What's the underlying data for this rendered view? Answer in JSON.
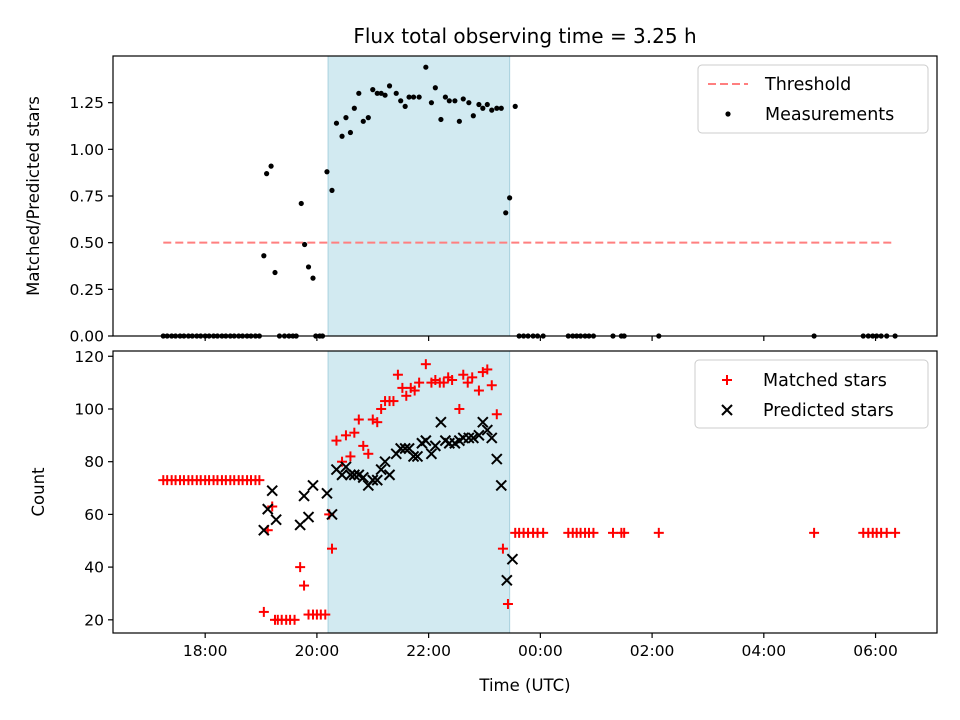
{
  "title": "Flux total observing time = 3.25 h",
  "shaded_region": {
    "start_hour": 20.2,
    "end_hour": 23.45,
    "color": "#add8e6"
  },
  "chart_data": [
    {
      "type": "scatter",
      "name": "ratio-panel",
      "ylabel": "Matched/Predicted stars",
      "ylim": [
        0,
        1.5
      ],
      "yticks": [
        0,
        0.25,
        0.5,
        0.75,
        1.0,
        1.25
      ],
      "ytick_labels": [
        "0.00",
        "0.25",
        "0.50",
        "0.75",
        "1.00",
        "1.25"
      ],
      "legend_position": "top-right",
      "threshold": {
        "name": "Threshold",
        "value": 0.5,
        "x": [
          17.25,
          30.35
        ],
        "color": "#ff7f7f"
      },
      "series": [
        {
          "name": "Measurements",
          "color": "#000000",
          "points": [
            [
              17.25,
              0
            ],
            [
              17.32,
              0
            ],
            [
              17.4,
              0
            ],
            [
              17.47,
              0
            ],
            [
              17.55,
              0
            ],
            [
              17.62,
              0
            ],
            [
              17.7,
              0
            ],
            [
              17.77,
              0
            ],
            [
              17.85,
              0
            ],
            [
              17.92,
              0
            ],
            [
              18.0,
              0
            ],
            [
              18.07,
              0
            ],
            [
              18.15,
              0
            ],
            [
              18.22,
              0
            ],
            [
              18.3,
              0
            ],
            [
              18.37,
              0
            ],
            [
              18.45,
              0
            ],
            [
              18.52,
              0
            ],
            [
              18.6,
              0
            ],
            [
              18.67,
              0
            ],
            [
              18.75,
              0
            ],
            [
              18.82,
              0
            ],
            [
              18.9,
              0
            ],
            [
              18.97,
              0
            ],
            [
              19.05,
              0.43
            ],
            [
              19.1,
              0.87
            ],
            [
              19.18,
              0.91
            ],
            [
              19.25,
              0.34
            ],
            [
              19.33,
              0
            ],
            [
              19.42,
              0
            ],
            [
              19.5,
              0
            ],
            [
              19.57,
              0
            ],
            [
              19.63,
              0
            ],
            [
              19.72,
              0.71
            ],
            [
              19.78,
              0.49
            ],
            [
              19.85,
              0.37
            ],
            [
              19.93,
              0.31
            ],
            [
              19.98,
              0
            ],
            [
              20.05,
              0
            ],
            [
              20.1,
              0
            ],
            [
              20.18,
              0.88
            ],
            [
              20.27,
              0.78
            ],
            [
              20.35,
              1.14
            ],
            [
              20.45,
              1.07
            ],
            [
              20.52,
              1.17
            ],
            [
              20.6,
              1.09
            ],
            [
              20.67,
              1.22
            ],
            [
              20.75,
              1.3
            ],
            [
              20.83,
              1.15
            ],
            [
              20.92,
              1.17
            ],
            [
              21.0,
              1.32
            ],
            [
              21.08,
              1.3
            ],
            [
              21.15,
              1.3
            ],
            [
              21.22,
              1.29
            ],
            [
              21.3,
              1.34
            ],
            [
              21.42,
              1.3
            ],
            [
              21.5,
              1.26
            ],
            [
              21.58,
              1.23
            ],
            [
              21.65,
              1.28
            ],
            [
              21.73,
              1.28
            ],
            [
              21.83,
              1.28
            ],
            [
              21.95,
              1.44
            ],
            [
              22.05,
              1.25
            ],
            [
              22.12,
              1.33
            ],
            [
              22.22,
              1.16
            ],
            [
              22.3,
              1.28
            ],
            [
              22.37,
              1.26
            ],
            [
              22.47,
              1.26
            ],
            [
              22.55,
              1.15
            ],
            [
              22.62,
              1.27
            ],
            [
              22.72,
              1.25
            ],
            [
              22.8,
              1.18
            ],
            [
              22.9,
              1.24
            ],
            [
              22.97,
              1.22
            ],
            [
              23.05,
              1.24
            ],
            [
              23.13,
              1.21
            ],
            [
              23.22,
              1.22
            ],
            [
              23.3,
              1.22
            ],
            [
              23.38,
              0.66
            ],
            [
              23.45,
              0.74
            ],
            [
              23.55,
              1.23
            ],
            [
              23.62,
              0
            ],
            [
              23.7,
              0
            ],
            [
              23.78,
              0
            ],
            [
              23.87,
              0
            ],
            [
              23.95,
              0
            ],
            [
              24.05,
              0
            ],
            [
              24.5,
              0
            ],
            [
              24.58,
              0
            ],
            [
              24.65,
              0
            ],
            [
              24.72,
              0
            ],
            [
              24.8,
              0
            ],
            [
              24.87,
              0
            ],
            [
              24.95,
              0
            ],
            [
              25.3,
              0
            ],
            [
              25.45,
              0
            ],
            [
              25.5,
              0
            ],
            [
              26.12,
              0
            ],
            [
              28.9,
              0
            ],
            [
              29.78,
              0
            ],
            [
              29.87,
              0
            ],
            [
              29.95,
              0
            ],
            [
              30.02,
              0
            ],
            [
              30.1,
              0
            ],
            [
              30.2,
              0
            ],
            [
              30.35,
              0
            ]
          ]
        }
      ]
    },
    {
      "type": "scatter",
      "name": "count-panel",
      "ylabel": "Count",
      "xlabel": "Time (UTC)",
      "xlim": [
        16.35,
        31.1
      ],
      "xticks": [
        18,
        20,
        22,
        24,
        26,
        28,
        30
      ],
      "xtick_labels": [
        "18:00",
        "20:00",
        "22:00",
        "00:00",
        "02:00",
        "04:00",
        "06:00"
      ],
      "ylim": [
        15,
        122
      ],
      "yticks": [
        20,
        40,
        60,
        80,
        100,
        120
      ],
      "ytick_labels": [
        "20",
        "40",
        "60",
        "80",
        "100",
        "120"
      ],
      "legend_position": "top-right",
      "series": [
        {
          "name": "Matched stars",
          "color": "#ff0000",
          "marker": "plus",
          "points": [
            [
              17.25,
              73
            ],
            [
              17.32,
              73
            ],
            [
              17.4,
              73
            ],
            [
              17.47,
              73
            ],
            [
              17.55,
              73
            ],
            [
              17.62,
              73
            ],
            [
              17.7,
              73
            ],
            [
              17.77,
              73
            ],
            [
              17.85,
              73
            ],
            [
              17.92,
              73
            ],
            [
              18.0,
              73
            ],
            [
              18.07,
              73
            ],
            [
              18.15,
              73
            ],
            [
              18.22,
              73
            ],
            [
              18.3,
              73
            ],
            [
              18.37,
              73
            ],
            [
              18.45,
              73
            ],
            [
              18.52,
              73
            ],
            [
              18.6,
              73
            ],
            [
              18.67,
              73
            ],
            [
              18.75,
              73
            ],
            [
              18.82,
              73
            ],
            [
              18.9,
              73
            ],
            [
              18.97,
              73
            ],
            [
              19.05,
              23
            ],
            [
              19.12,
              54
            ],
            [
              19.2,
              63
            ],
            [
              19.25,
              20
            ],
            [
              19.3,
              20
            ],
            [
              19.37,
              20
            ],
            [
              19.45,
              20
            ],
            [
              19.52,
              20
            ],
            [
              19.6,
              20
            ],
            [
              19.7,
              40
            ],
            [
              19.77,
              33
            ],
            [
              19.85,
              22
            ],
            [
              19.93,
              22
            ],
            [
              20.0,
              22
            ],
            [
              20.07,
              22
            ],
            [
              20.15,
              22
            ],
            [
              20.22,
              60
            ],
            [
              20.27,
              47
            ],
            [
              20.35,
              88
            ],
            [
              20.45,
              80
            ],
            [
              20.52,
              90
            ],
            [
              20.6,
              82
            ],
            [
              20.67,
              91
            ],
            [
              20.75,
              96
            ],
            [
              20.83,
              86
            ],
            [
              20.92,
              83
            ],
            [
              21.0,
              96
            ],
            [
              21.08,
              95
            ],
            [
              21.15,
              100
            ],
            [
              21.22,
              103
            ],
            [
              21.3,
              103
            ],
            [
              21.37,
              103
            ],
            [
              21.45,
              113
            ],
            [
              21.53,
              108
            ],
            [
              21.6,
              105
            ],
            [
              21.68,
              108
            ],
            [
              21.75,
              107
            ],
            [
              21.83,
              110
            ],
            [
              21.95,
              117
            ],
            [
              22.05,
              110
            ],
            [
              22.12,
              111
            ],
            [
              22.2,
              110
            ],
            [
              22.27,
              110
            ],
            [
              22.35,
              112
            ],
            [
              22.42,
              111
            ],
            [
              22.55,
              100
            ],
            [
              22.62,
              113
            ],
            [
              22.7,
              110
            ],
            [
              22.78,
              112
            ],
            [
              22.9,
              107
            ],
            [
              22.97,
              114
            ],
            [
              23.05,
              115
            ],
            [
              23.13,
              109
            ],
            [
              23.22,
              98
            ],
            [
              23.33,
              47
            ],
            [
              23.42,
              26
            ],
            [
              23.55,
              53
            ],
            [
              23.62,
              53
            ],
            [
              23.7,
              53
            ],
            [
              23.78,
              53
            ],
            [
              23.87,
              53
            ],
            [
              23.95,
              53
            ],
            [
              24.05,
              53
            ],
            [
              24.5,
              53
            ],
            [
              24.58,
              53
            ],
            [
              24.65,
              53
            ],
            [
              24.72,
              53
            ],
            [
              24.8,
              53
            ],
            [
              24.87,
              53
            ],
            [
              24.95,
              53
            ],
            [
              25.3,
              53
            ],
            [
              25.45,
              53
            ],
            [
              25.5,
              53
            ],
            [
              26.12,
              53
            ],
            [
              28.9,
              53
            ],
            [
              29.78,
              53
            ],
            [
              29.87,
              53
            ],
            [
              29.95,
              53
            ],
            [
              30.02,
              53
            ],
            [
              30.1,
              53
            ],
            [
              30.2,
              53
            ],
            [
              30.35,
              53
            ]
          ]
        },
        {
          "name": "Predicted stars",
          "color": "#000000",
          "marker": "x",
          "points": [
            [
              19.05,
              54
            ],
            [
              19.12,
              62
            ],
            [
              19.2,
              69
            ],
            [
              19.27,
              58
            ],
            [
              19.7,
              56
            ],
            [
              19.77,
              67
            ],
            [
              19.85,
              59
            ],
            [
              19.93,
              71
            ],
            [
              20.18,
              68
            ],
            [
              20.27,
              60
            ],
            [
              20.35,
              77
            ],
            [
              20.45,
              75
            ],
            [
              20.52,
              78
            ],
            [
              20.6,
              75
            ],
            [
              20.67,
              75
            ],
            [
              20.75,
              75
            ],
            [
              20.83,
              74
            ],
            [
              20.92,
              71
            ],
            [
              21.0,
              73
            ],
            [
              21.08,
              73
            ],
            [
              21.15,
              77
            ],
            [
              21.22,
              80
            ],
            [
              21.3,
              75
            ],
            [
              21.42,
              83
            ],
            [
              21.5,
              85
            ],
            [
              21.58,
              85
            ],
            [
              21.65,
              85
            ],
            [
              21.73,
              82
            ],
            [
              21.8,
              82
            ],
            [
              21.88,
              87
            ],
            [
              21.95,
              88
            ],
            [
              22.05,
              83
            ],
            [
              22.12,
              86
            ],
            [
              22.22,
              95
            ],
            [
              22.3,
              88
            ],
            [
              22.37,
              87
            ],
            [
              22.47,
              87
            ],
            [
              22.55,
              88
            ],
            [
              22.62,
              89
            ],
            [
              22.72,
              89
            ],
            [
              22.8,
              89
            ],
            [
              22.9,
              90
            ],
            [
              22.97,
              95
            ],
            [
              23.05,
              92
            ],
            [
              23.13,
              89
            ],
            [
              23.22,
              81
            ],
            [
              23.3,
              71
            ],
            [
              23.4,
              35
            ],
            [
              23.5,
              43
            ]
          ]
        }
      ]
    }
  ]
}
